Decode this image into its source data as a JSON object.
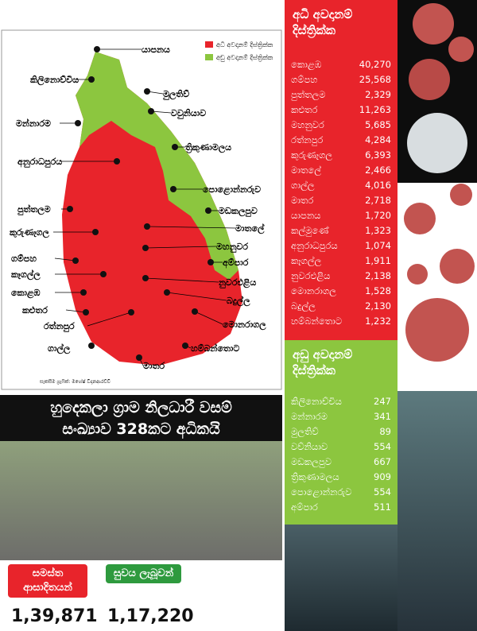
{
  "map": {
    "labels": [
      "යාපනය",
      "කිලිනොච්චිය",
      "මුලතිව්",
      "වවුනියාව",
      "මන්නාරම",
      "ත්‍රිකුණාමලය",
      "අනුරාධපුරය",
      "පොළොන්නරුව",
      "පුත්තලම",
      "මඩකලපුව",
      "මාතලේ",
      "කුරුණෑගල",
      "මහනුවර",
      "ගම්පහ",
      "අම්පාර",
      "කෑගල්ල",
      "නුවරඑළිය",
      "කොළඹ",
      "බදුල්ල",
      "කළුතර",
      "රත්නපුර",
      "මොනරාගල",
      "ගාල්ල",
      "හම්බන්තොට",
      "මාතර"
    ],
    "legend": [
      "අධි අවදානම් දිස්ත්‍රික්ක",
      "අඩු අවදානම් දිස්ත්‍රික්ක"
    ],
    "credit": "සැකසීම ග්‍රැෆික්: මහේෂ් විදානආරච්චි"
  },
  "high_risk": {
    "title": "අධි අවදානම් දිස්ත්‍රික්ක",
    "rows": [
      [
        "කොළඹ",
        "40,270"
      ],
      [
        "ගම්පහ",
        "25,568"
      ],
      [
        "පුත්තලම",
        "2,329"
      ],
      [
        "කළුතර",
        "11,263"
      ],
      [
        "මහනුවර",
        "5,685"
      ],
      [
        "රත්නපුර",
        "4,284"
      ],
      [
        "කුරුණෑගල",
        "6,393"
      ],
      [
        "මාතලේ",
        "2,466"
      ],
      [
        "ගාල්ල",
        "4,016"
      ],
      [
        "මාතර",
        "2,718"
      ],
      [
        "යාපනය",
        "1,720"
      ],
      [
        "කල්මුණේ",
        "1,323"
      ],
      [
        "අනුරාධපුරය",
        "1,074"
      ],
      [
        "කෑගල්ල",
        "1,911"
      ],
      [
        "නුවරඑළිය",
        "2,138"
      ],
      [
        "මොනරාගල",
        "1,528"
      ],
      [
        "බදුල්ල",
        "2,130"
      ],
      [
        "හම්බන්තොට",
        "1,232"
      ]
    ]
  },
  "low_risk": {
    "title": "අඩු අවදානම් දිස්ත්‍රික්ක",
    "rows": [
      [
        "කිලිනොච්චිය",
        "247"
      ],
      [
        "මන්නාරම",
        "341"
      ],
      [
        "මුලතිව්",
        "89"
      ],
      [
        "වව්නියාව",
        "554"
      ],
      [
        "මඩකලපුව",
        "667"
      ],
      [
        "ත්‍රිකුණාමලය",
        "909"
      ],
      [
        "පොළොන්නරුව",
        "554"
      ],
      [
        "අම්පාර",
        "511"
      ]
    ]
  },
  "headline": [
    "හුදෙකලා ග්‍රාම නිලධාරී වසම්",
    "සංඛ්‍යාව 328කට අධිකයි"
  ],
  "totals": [
    {
      "label": "සමස්ත ආසාදිතයන්",
      "value": "1,39,871"
    },
    {
      "label": "සුවය ලැබූවන්",
      "value": "1,17,220"
    }
  ]
}
